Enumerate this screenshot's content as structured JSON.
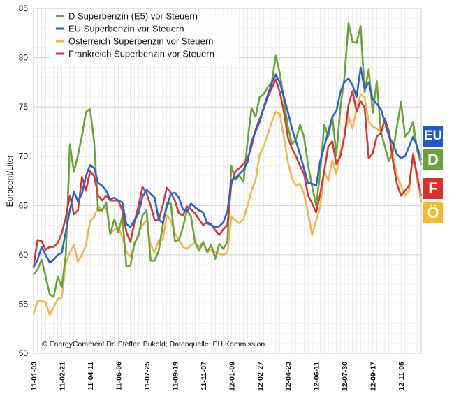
{
  "chart_data": {
    "type": "line",
    "title": "",
    "xlabel": "",
    "ylabel": "Eurocent/Liter",
    "ylim": [
      50,
      85
    ],
    "yticks": [
      50,
      55,
      60,
      65,
      70,
      75,
      80,
      85
    ],
    "grid": true,
    "x_ticks": [
      "11-01-03",
      "11-02-21",
      "11-04-11",
      "11-06-06",
      "11-07-25",
      "11-09-19",
      "11-11-07",
      "12-01-09",
      "12-02-27",
      "12-04-23",
      "12-06-11",
      "12-07-30",
      "12-09-17",
      "12-11-05"
    ],
    "n_points": 97,
    "legend_position": "top-left",
    "credit": "© EnergyComment Dr. Steffen Bukold; Datenquelle: EU Kommission",
    "series": [
      {
        "name": "D Superbenzin (E5) vor Steuern",
        "color": "#6aa33a",
        "values": [
          58.0,
          58.5,
          59.5,
          57.8,
          56.0,
          55.7,
          57.8,
          56.7,
          60.0,
          71.2,
          68.4,
          70.1,
          72.1,
          74.5,
          74.8,
          71.5,
          64.5,
          64.5,
          65.3,
          62.1,
          63.6,
          62.3,
          63.9,
          58.8,
          58.9,
          61.2,
          61.9,
          64.0,
          64.5,
          59.4,
          59.4,
          60.4,
          63.0,
          65.2,
          65.2,
          61.4,
          61.5,
          62.8,
          64.5,
          63.9,
          61.3,
          60.4,
          61.3,
          60.3,
          61.0,
          59.6,
          61.1,
          60.6,
          61.3,
          69.0,
          67.6,
          68.0,
          67.4,
          71.5,
          74.9,
          74.0,
          76.0,
          76.3,
          77.0,
          77.5,
          80.2,
          78.4,
          75.7,
          73.0,
          71.2,
          71.7,
          73.2,
          71.9,
          69.1,
          66.9,
          65.0,
          68.4,
          73.2,
          72.0,
          74.0,
          70.1,
          75.0,
          78.0,
          83.5,
          81.6,
          81.5,
          83.2,
          76.5,
          78.8,
          74.4,
          77.6,
          72.5,
          71.0,
          69.5,
          70.5,
          73.0,
          75.5,
          72.0,
          72.5,
          73.5,
          70.6,
          69.2
        ]
      },
      {
        "name": "EU Superbenzin vor Steuern",
        "color": "#2f62c8",
        "values": [
          58.7,
          59.5,
          60.8,
          60.0,
          59.2,
          59.5,
          60.0,
          60.2,
          62.4,
          64.5,
          66.4,
          65.4,
          66.2,
          68.0,
          69.1,
          68.8,
          67.3,
          67.0,
          66.5,
          65.6,
          65.8,
          65.5,
          65.3,
          63.1,
          62.8,
          63.5,
          64.2,
          65.9,
          66.6,
          66.2,
          65.8,
          63.6,
          63.2,
          64.9,
          66.2,
          66.3,
          65.8,
          64.6,
          64.4,
          65.2,
          64.8,
          64.5,
          64.3,
          63.2,
          63.0,
          62.8,
          62.9,
          63.3,
          64.4,
          67.5,
          67.8,
          68.2,
          68.6,
          69.4,
          71.5,
          72.5,
          73.5,
          75.0,
          76.2,
          77.4,
          78.3,
          77.5,
          76.0,
          74.5,
          72.8,
          71.5,
          70.2,
          68.7,
          67.3,
          67.2,
          67.0,
          69.5,
          71.0,
          72.5,
          74.0,
          74.6,
          76.5,
          77.5,
          77.9,
          77.2,
          76.0,
          79.0,
          76.8,
          77.5,
          75.8,
          75.3,
          74.8,
          73.5,
          72.0,
          71.3,
          70.2,
          69.8,
          70.0,
          71.0,
          72.0,
          71.0,
          69.7
        ]
      },
      {
        "name": "Österreich Superbenzin vor Steuern",
        "color": "#f0b555",
        "values": [
          54.0,
          55.3,
          55.3,
          55.2,
          53.9,
          54.7,
          55.5,
          55.7,
          59.2,
          60.2,
          61.0,
          59.3,
          60.0,
          61.0,
          63.4,
          63.8,
          64.9,
          64.6,
          64.8,
          62.3,
          62.5,
          62.8,
          61.8,
          60.3,
          59.8,
          61.0,
          62.2,
          63.0,
          63.5,
          61.0,
          60.2,
          61.5,
          61.5,
          64.0,
          63.5,
          62.2,
          61.5,
          60.8,
          60.6,
          61.0,
          61.2,
          60.8,
          61.3,
          60.2,
          60.5,
          60.3,
          60.1,
          60.0,
          60.2,
          63.9,
          63.5,
          63.2,
          63.6,
          65.0,
          66.5,
          67.6,
          70.2,
          71.0,
          72.2,
          73.5,
          74.5,
          74.3,
          71.9,
          69.4,
          67.8,
          67.0,
          67.2,
          66.2,
          64.2,
          62.0,
          63.5,
          64.9,
          68.5,
          67.5,
          69.6,
          68.2,
          70.5,
          72.0,
          74.0,
          72.8,
          74.8,
          76.3,
          75.9,
          73.5,
          73.0,
          72.8,
          72.5,
          73.0,
          72.6,
          70.2,
          68.0,
          67.0,
          66.0,
          66.5,
          70.4,
          67.5,
          65.4
        ]
      },
      {
        "name": "Frankreich Superbenzin vor Steuern",
        "color": "#cc3b3b",
        "values": [
          58.8,
          61.5,
          61.4,
          60.5,
          60.8,
          60.8,
          61.2,
          62.2,
          63.8,
          66.0,
          64.1,
          64.5,
          67.9,
          66.5,
          68.5,
          68.0,
          66.0,
          65.5,
          66.0,
          65.5,
          65.5,
          65.5,
          64.5,
          62.3,
          61.3,
          63.3,
          65.0,
          66.9,
          66.2,
          65.0,
          63.5,
          63.5,
          65.0,
          66.8,
          66.3,
          65.5,
          64.2,
          64.0,
          64.9,
          64.6,
          64.2,
          63.6,
          63.0,
          63.3,
          63.1,
          62.5,
          62.0,
          62.6,
          63.0,
          67.2,
          68.5,
          68.8,
          69.2,
          69.8,
          71.0,
          72.7,
          73.8,
          74.8,
          76.0,
          76.9,
          77.8,
          76.5,
          74.5,
          71.9,
          70.8,
          70.0,
          69.0,
          68.2,
          66.0,
          65.2,
          64.3,
          66.2,
          68.5,
          71.0,
          71.5,
          69.2,
          70.0,
          72.0,
          75.2,
          76.6,
          74.5,
          75.6,
          74.9,
          69.8,
          70.3,
          72.0,
          72.3,
          73.8,
          72.5,
          69.5,
          67.2,
          66.0,
          66.5,
          67.0,
          70.2,
          68.0,
          66.0
        ]
      }
    ],
    "badges": [
      {
        "label": "EU",
        "color": "#1f5bc4"
      },
      {
        "label": "D",
        "color": "#6aa33a"
      },
      {
        "label": "F",
        "color": "#d9302a"
      },
      {
        "label": "Ö",
        "color": "#f3bb2c"
      }
    ]
  }
}
